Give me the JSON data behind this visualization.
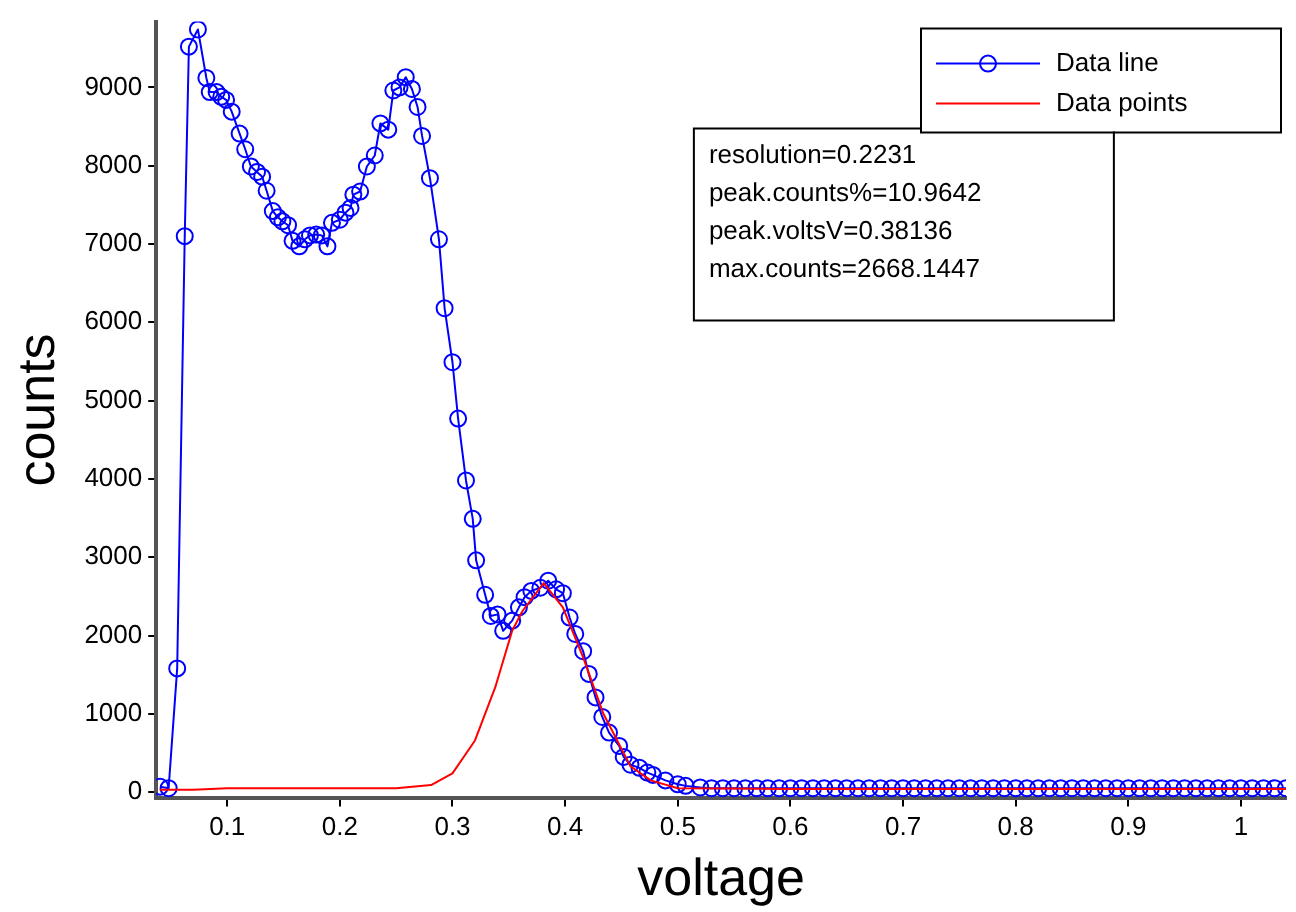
{
  "chart_data": {
    "type": "line",
    "xlabel": "voltage",
    "ylabel": "counts",
    "xlim": [
      0.037,
      1.04
    ],
    "ylim": [
      -80,
      9840
    ],
    "xticks": [
      0.1,
      0.2,
      0.3,
      0.4,
      0.5,
      0.6,
      0.7,
      0.8,
      0.9,
      1
    ],
    "yticks": [
      0,
      1000,
      2000,
      3000,
      4000,
      5000,
      6000,
      7000,
      8000,
      9000
    ],
    "grid": false,
    "legend": "top right",
    "annotations": [
      "resolution=0.2231",
      "peak.counts%=10.9642",
      "peak.voltsV=0.38136",
      "max.counts=2668.1447"
    ],
    "series": [
      {
        "name": "Data line",
        "color": "#0000ff",
        "marker": "circle",
        "line_style": "solid",
        "x": [
          0.0405,
          0.048,
          0.0556,
          0.0623,
          0.066,
          0.074,
          0.0815,
          0.0845,
          0.0906,
          0.0947,
          0.099,
          0.104,
          0.111,
          0.116,
          0.121,
          0.1265,
          0.131,
          0.135,
          0.1405,
          0.145,
          0.149,
          0.154,
          0.158,
          0.164,
          0.169,
          0.1735,
          0.179,
          0.184,
          0.189,
          0.193,
          0.2,
          0.205,
          0.2095,
          0.212,
          0.218,
          0.224,
          0.231,
          0.236,
          0.243,
          0.2475,
          0.253,
          0.2585,
          0.264,
          0.269,
          0.273,
          0.28,
          0.288,
          0.293,
          0.3,
          0.305,
          0.312,
          0.318,
          0.321,
          0.329,
          0.334,
          0.34,
          0.345,
          0.353,
          0.359,
          0.364,
          0.37,
          0.378,
          0.385,
          0.392,
          0.398,
          0.404,
          0.409,
          0.416,
          0.421,
          0.427,
          0.433,
          0.439,
          0.448,
          0.452,
          0.458,
          0.466,
          0.473,
          0.478,
          0.489,
          0.5,
          0.507,
          0.52,
          0.53,
          0.54,
          0.55,
          0.56,
          0.57,
          0.58,
          0.59,
          0.6,
          0.61,
          0.62,
          0.63,
          0.64,
          0.65,
          0.66,
          0.67,
          0.68,
          0.69,
          0.7,
          0.71,
          0.72,
          0.73,
          0.74,
          0.75,
          0.76,
          0.77,
          0.78,
          0.79,
          0.8,
          0.81,
          0.82,
          0.83,
          0.84,
          0.85,
          0.86,
          0.87,
          0.88,
          0.89,
          0.9,
          0.91,
          0.92,
          0.93,
          0.94,
          0.95,
          0.96,
          0.97,
          0.98,
          0.99,
          1,
          1.01,
          1.02,
          1.03,
          1.04
        ],
        "values": [
          70,
          50,
          1580,
          7100,
          9520,
          9740,
          9120,
          8940,
          8940,
          8880,
          8840,
          8690,
          8410,
          8210,
          7990,
          7920,
          7860,
          7680,
          7420,
          7340,
          7290,
          7240,
          7040,
          6970,
          7060,
          7110,
          7120,
          7110,
          6970,
          7270,
          7310,
          7400,
          7460,
          7630,
          7670,
          7990,
          8130,
          8540,
          8460,
          8960,
          9000,
          9130,
          8980,
          8750,
          8380,
          7840,
          7060,
          6180,
          5490,
          4770,
          3980,
          3490,
          2960,
          2520,
          2250,
          2270,
          2060,
          2190,
          2360,
          2490,
          2570,
          2610,
          2700,
          2590,
          2540,
          2230,
          2020,
          1800,
          1510,
          1210,
          960,
          760,
          590,
          450,
          350,
          310,
          250,
          220,
          150,
          100,
          80,
          60,
          50,
          50,
          50,
          50,
          50,
          50,
          50,
          50,
          50,
          50,
          50,
          50,
          50,
          50,
          50,
          50,
          50,
          50,
          50,
          50,
          50,
          50,
          50,
          50,
          50,
          50,
          50,
          50,
          50,
          50,
          50,
          50,
          50,
          50,
          50,
          50,
          50,
          50,
          50,
          50,
          50,
          50,
          50,
          50,
          50,
          50,
          50,
          50,
          50,
          50,
          50,
          50
        ]
      },
      {
        "name": "Data points",
        "color": "#ff0000",
        "marker": "none",
        "line_style": "solid",
        "x": [
          0.04,
          0.07,
          0.1,
          0.15,
          0.2,
          0.25,
          0.281,
          0.3,
          0.32,
          0.338,
          0.353,
          0.362,
          0.381,
          0.398,
          0.416,
          0.434,
          0.458,
          0.476,
          0.5,
          0.6,
          0.7,
          0.8,
          0.9,
          1,
          1.04
        ],
        "values": [
          30,
          30,
          50,
          50,
          50,
          50,
          90,
          240,
          660,
          1340,
          2060,
          2310,
          2670,
          2360,
          1720,
          1000,
          330,
          150,
          50,
          40,
          40,
          40,
          40,
          40,
          40
        ]
      }
    ]
  }
}
